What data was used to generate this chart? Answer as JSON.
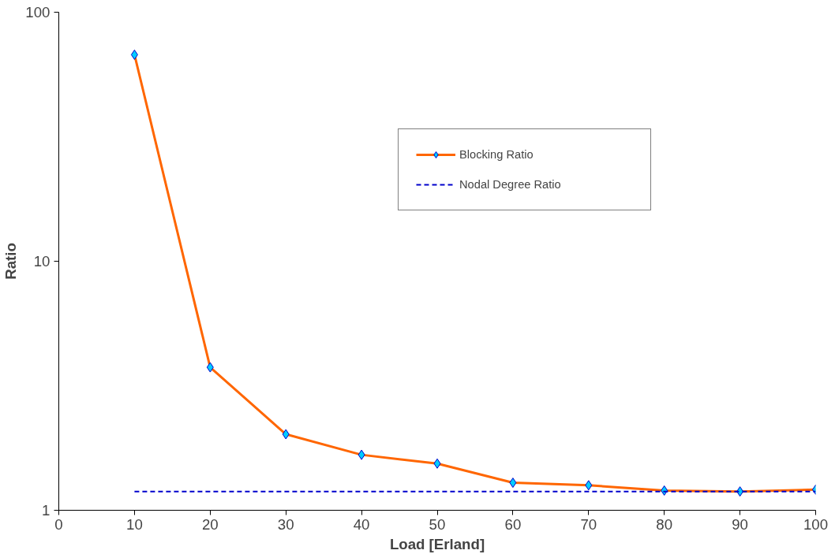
{
  "chart_data": {
    "type": "line",
    "xlabel": "Load [Erland]",
    "ylabel": "Ratio",
    "x": [
      10,
      20,
      30,
      40,
      50,
      60,
      70,
      80,
      90,
      100
    ],
    "series": [
      {
        "name": "Blocking Ratio",
        "color": "#ff6600",
        "marker": "diamond",
        "line_style": "solid",
        "values": [
          67.5,
          3.75,
          2.02,
          1.67,
          1.54,
          1.29,
          1.26,
          1.2,
          1.19,
          1.21
        ]
      },
      {
        "name": "Nodal Degree Ratio",
        "color": "#0000cc",
        "marker": "none",
        "line_style": "dashed",
        "values": [
          1.19,
          1.19,
          1.19,
          1.19,
          1.19,
          1.19,
          1.19,
          1.19,
          1.19,
          1.19
        ]
      }
    ],
    "xlim": [
      0,
      100
    ],
    "xticks": [
      0,
      10,
      20,
      30,
      40,
      50,
      60,
      70,
      80,
      90,
      100
    ],
    "ylim": [
      1,
      100
    ],
    "yticks": [
      1,
      10,
      100
    ],
    "log": "y",
    "grid": false,
    "legend": "top right"
  }
}
